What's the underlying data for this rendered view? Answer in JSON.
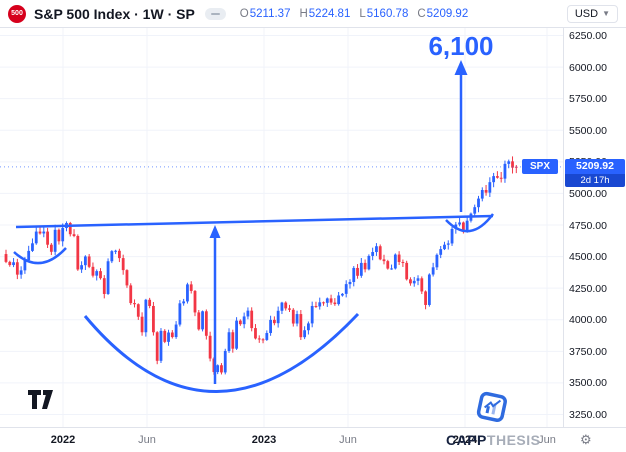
{
  "header": {
    "symbol_logo": "500",
    "title": "S&P 500 Index · 1W · SP",
    "ohlc": [
      {
        "label": "O",
        "value": "5211.37"
      },
      {
        "label": "H",
        "value": "5224.81"
      },
      {
        "label": "L",
        "value": "5160.78"
      },
      {
        "label": "C",
        "value": "5209.92"
      }
    ],
    "currency": "USD"
  },
  "price_line": {
    "symbol_badge": "SPX",
    "price_badge": "5209.92",
    "countdown": "2d 17h"
  },
  "annotations": {
    "price_target": "6,100",
    "pattern": "cup-and-handle"
  },
  "watermarks": {
    "tradingview": "TradingView",
    "brand_primary": "CAPP",
    "brand_secondary": "THESIS"
  },
  "colors": {
    "up": "#2962ff",
    "down": "#f23645",
    "annotation": "#2962ff",
    "grid": "#f0f3fa",
    "border": "#e0e3eb",
    "axis_text": "#131722",
    "muted_text": "#787b86",
    "badge": "#2962ff",
    "badge_countdown": "#1948d1",
    "logo_red": "#d6001c"
  },
  "price_scale": {
    "labels": [
      "6250.00",
      "6000.00",
      "5750.00",
      "5500.00",
      "5250.00",
      "5000.00",
      "4750.00",
      "4500.00",
      "4250.00",
      "4000.00",
      "3750.00",
      "3500.00",
      "3250.00"
    ]
  },
  "time_scale": {
    "labels": [
      {
        "text": "2022",
        "x": 63,
        "major": true
      },
      {
        "text": "Jun",
        "x": 147,
        "major": false
      },
      {
        "text": "2023",
        "x": 264,
        "major": true
      },
      {
        "text": "Jun",
        "x": 348,
        "major": false
      },
      {
        "text": "2024",
        "x": 465,
        "major": true
      },
      {
        "text": "Jun",
        "x": 547,
        "major": false
      }
    ]
  },
  "chart_data": {
    "type": "candlestick",
    "title": "S&P 500 Index, 1 week, SP",
    "symbol": "SPX",
    "timeframe": "1W",
    "x_ticks": [
      "2022",
      "Jun",
      "2023",
      "Jun",
      "2024",
      "Jun"
    ],
    "y_axis": {
      "min": 3250,
      "max": 6250,
      "step": 250
    },
    "grid": true,
    "current_price": 5209.92,
    "price_target": 6100,
    "first_open": 4520,
    "weekly_closes": [
      4458,
      4433,
      4455,
      4357,
      4391,
      4471,
      4545,
      4605,
      4698,
      4683,
      4698,
      4594,
      4538,
      4712,
      4621,
      4726,
      4766,
      4677,
      4663,
      4398,
      4432,
      4501,
      4419,
      4349,
      4385,
      4329,
      4204,
      4463,
      4543,
      4546,
      4488,
      4393,
      4272,
      4132,
      4123,
      4024,
      3901,
      4158,
      4109,
      3901,
      3675,
      3912,
      3825,
      3899,
      3863,
      3962,
      4130,
      4145,
      4280,
      4228,
      4058,
      3924,
      4067,
      3873,
      3693,
      3586,
      3640,
      3583,
      3753,
      3901,
      3771,
      3993,
      3965,
      4026,
      4072,
      3934,
      3852,
      3845,
      3840,
      3895,
      3999,
      3973,
      4071,
      4136,
      4090,
      4079,
      3970,
      4045,
      3862,
      3917,
      3971,
      4109,
      4105,
      4138,
      4134,
      4169,
      4136,
      4124,
      4192,
      4205,
      4282,
      4299,
      4410,
      4348,
      4450,
      4399,
      4505,
      4536,
      4582,
      4478,
      4464,
      4405,
      4406,
      4516,
      4457,
      4450,
      4320,
      4288,
      4308,
      4328,
      4224,
      4117,
      4358,
      4415,
      4514,
      4559,
      4594,
      4604,
      4719,
      4754,
      4770,
      4697,
      4784,
      4840,
      4891,
      4959,
      5027,
      5006,
      5089,
      5137,
      5124,
      5117,
      5234,
      5254,
      5204,
      5209.92
    ],
    "last_candle": {
      "o": 5211.37,
      "h": 5224.81,
      "l": 5160.78,
      "c": 5209.92
    }
  }
}
